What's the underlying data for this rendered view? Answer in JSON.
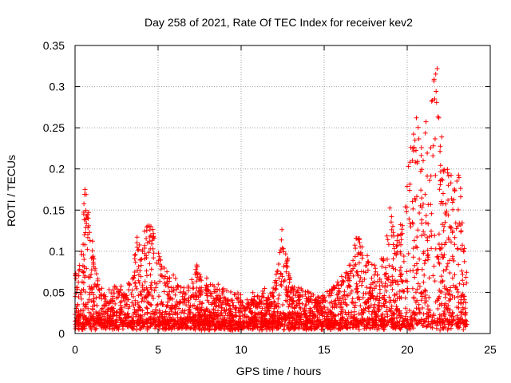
{
  "chart_data": {
    "type": "scatter",
    "title": "Day 258 of 2021, Rate Of TEC Index for receiver kev2",
    "xlabel": "GPS time / hours",
    "ylabel": "ROTI / TECUs",
    "xlim": [
      0,
      25
    ],
    "ylim": [
      0,
      0.35
    ],
    "x_ticks": [
      0,
      5,
      10,
      15,
      20,
      25
    ],
    "x_tick_labels": [
      "0",
      "5",
      "10",
      "15",
      "20",
      "25"
    ],
    "y_ticks": [
      0,
      0.05,
      0.1,
      0.15,
      0.2,
      0.25,
      0.3,
      0.35
    ],
    "y_tick_labels": [
      "0",
      "0.05",
      "0.1",
      "0.15",
      "0.2",
      "0.25",
      "0.3",
      "0.35"
    ],
    "grid": true,
    "marker": "+",
    "marker_color": "#ff0000",
    "envelope": {
      "description": "approximate upper envelope of ROTI values vs hour",
      "x": [
        0.0,
        0.3,
        0.6,
        0.8,
        1.0,
        1.2,
        1.5,
        2.0,
        2.5,
        3.0,
        3.5,
        3.7,
        4.0,
        4.3,
        4.5,
        4.8,
        5.0,
        5.5,
        6.0,
        6.5,
        7.0,
        7.3,
        7.6,
        8.0,
        8.5,
        9.0,
        9.5,
        10.0,
        10.5,
        11.0,
        11.5,
        12.0,
        12.5,
        12.8,
        13.0,
        13.5,
        14.0,
        14.5,
        15.0,
        15.5,
        16.0,
        16.5,
        17.0,
        17.5,
        18.0,
        18.5,
        19.0,
        19.3,
        19.7,
        20.0,
        20.3,
        20.6,
        20.9,
        21.2,
        21.5,
        21.8,
        22.0,
        22.3,
        22.6,
        22.9,
        23.2,
        23.5
      ],
      "y": [
        0.07,
        0.09,
        0.19,
        0.15,
        0.11,
        0.08,
        0.05,
        0.04,
        0.06,
        0.05,
        0.07,
        0.125,
        0.09,
        0.14,
        0.14,
        0.12,
        0.1,
        0.07,
        0.06,
        0.05,
        0.05,
        0.085,
        0.06,
        0.055,
        0.05,
        0.045,
        0.04,
        0.04,
        0.04,
        0.04,
        0.045,
        0.05,
        0.125,
        0.09,
        0.06,
        0.05,
        0.045,
        0.04,
        0.05,
        0.055,
        0.06,
        0.08,
        0.125,
        0.09,
        0.08,
        0.09,
        0.16,
        0.1,
        0.14,
        0.18,
        0.25,
        0.27,
        0.24,
        0.265,
        0.3,
        0.34,
        0.25,
        0.21,
        0.2,
        0.18,
        0.2,
        0.08
      ]
    }
  }
}
